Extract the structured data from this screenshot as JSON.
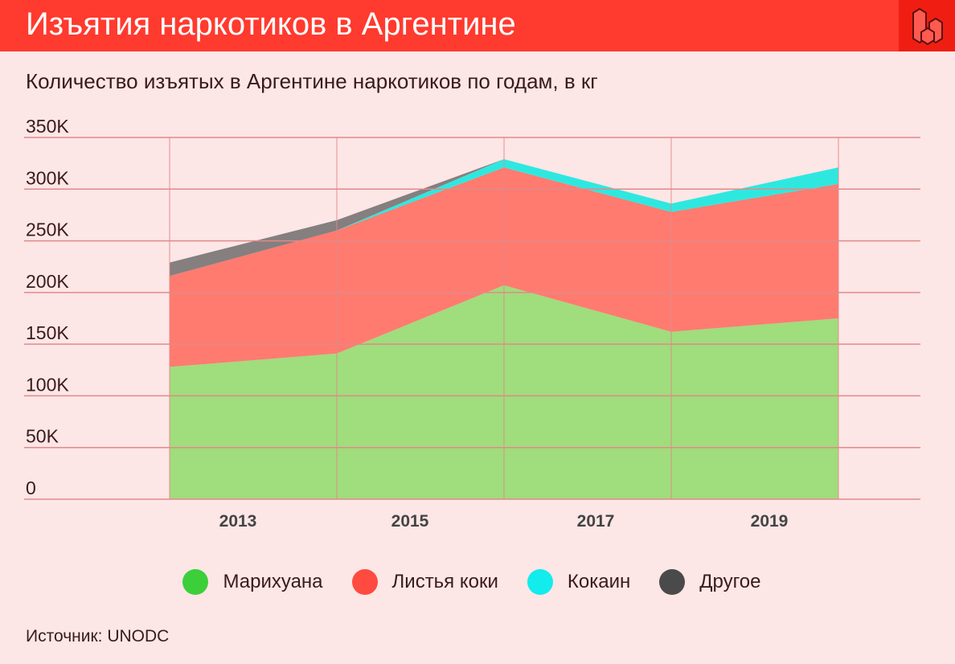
{
  "header": {
    "title": "Изъятия наркотиков в Аргентине",
    "logo": "cube-logo"
  },
  "subtitle": "Количество изъятых в Аргентине наркотиков по годам, в кг",
  "source": "Источник: UNODC",
  "chart_data": {
    "type": "area",
    "stacked": true,
    "title": "Количество изъятых в Аргентине наркотиков по годам, в кг",
    "x": [
      2012,
      2014,
      2016,
      2018,
      2020
    ],
    "xticks": [
      2013,
      2015,
      2017,
      2019
    ],
    "yticks": [
      {
        "v": 0,
        "label": "0"
      },
      {
        "v": 50000,
        "label": "50K"
      },
      {
        "v": 100000,
        "label": "100K"
      },
      {
        "v": 150000,
        "label": "150K"
      },
      {
        "v": 200000,
        "label": "200K"
      },
      {
        "v": 250000,
        "label": "250K"
      },
      {
        "v": 300000,
        "label": "300K"
      },
      {
        "v": 350000,
        "label": "350K"
      }
    ],
    "ylim": [
      0,
      350000
    ],
    "grid": true,
    "legend_position": "bottom",
    "series": [
      {
        "name": "Марихуана",
        "color": "#a0dd7c",
        "legend_color": "#3ccf3a",
        "values": [
          128000,
          141000,
          207000,
          162000,
          175000
        ]
      },
      {
        "name": "Листья коки",
        "color": "#ff7b70",
        "legend_color": "#ff4a40",
        "values": [
          88000,
          119000,
          114000,
          116000,
          130000
        ]
      },
      {
        "name": "Кокаин",
        "color": "#2ee8e0",
        "legend_color": "#12ecec",
        "values": [
          0,
          0,
          8000,
          8000,
          16000
        ]
      },
      {
        "name": "Другое",
        "color": "#857f7f",
        "legend_color": "#4a4a4a",
        "values": [
          13000,
          10000,
          0,
          0,
          0
        ]
      }
    ]
  }
}
